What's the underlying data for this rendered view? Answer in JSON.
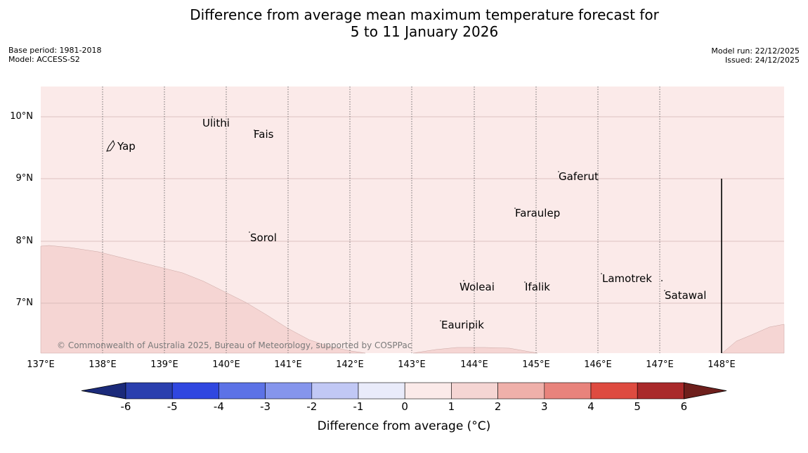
{
  "title": {
    "line1": "Difference from average mean maximum temperature forecast for",
    "line2": "5 to 11 January 2026"
  },
  "meta": {
    "base_period": "Base period: 1981-2018",
    "model": "Model: ACCESS-S2",
    "model_run": "Model run: 22/12/2025",
    "issued": "Issued: 24/12/2025"
  },
  "axes": {
    "lat_labels": [
      "10°N",
      "9°N",
      "8°N",
      "7°N"
    ],
    "lon_labels": [
      "137°E",
      "138°E",
      "139°E",
      "140°E",
      "141°E",
      "142°E",
      "143°E",
      "144°E",
      "145°E",
      "146°E",
      "147°E",
      "148°E"
    ]
  },
  "places": [
    {
      "name": "Yap"
    },
    {
      "name": "Ulithi"
    },
    {
      "name": "Fais"
    },
    {
      "name": "Gaferut"
    },
    {
      "name": "Faraulep"
    },
    {
      "name": "Sorol"
    },
    {
      "name": "Lamotrek"
    },
    {
      "name": "Woleai"
    },
    {
      "name": "Ifalik"
    },
    {
      "name": "Satawal"
    },
    {
      "name": "Eauripik"
    }
  ],
  "copyright": "© Commonwealth of Australia 2025, Bureau of Meteorology, supported by COSPPac",
  "colorbar": {
    "title": "Difference from average (°C)",
    "ticks": [
      "-6",
      "-5",
      "-4",
      "-3",
      "-2",
      "-1",
      "0",
      "1",
      "2",
      "3",
      "4",
      "5",
      "6"
    ],
    "colors": {
      "lt_-6": "#1b2a7a",
      "-6_-5": "#2a3fae",
      "-5_-4": "#3047e0",
      "-4_-3": "#5c72e6",
      "-3_-2": "#8595ec",
      "-2_-1": "#c1c8f5",
      "-1_0": "#e9ebfa",
      "0_1": "#fbeae9",
      "1_2": "#f5d5d3",
      "2_3": "#efb0aa",
      "3_4": "#e8837c",
      "4_5": "#de4b40",
      "5_6": "#a9292a",
      "gt_6": "#6e1f1c"
    }
  },
  "map_colors": {
    "background": "#fbeae9",
    "warm_region": "#f5d5d3"
  }
}
